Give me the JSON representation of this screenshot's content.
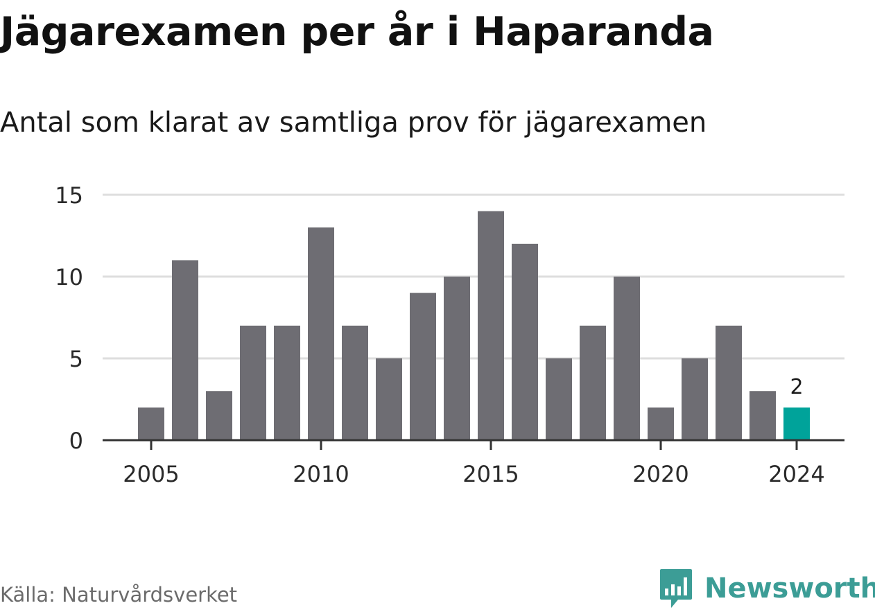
{
  "title": "Jägarexamen per år i Haparanda",
  "subtitle": "Antal som klarat av samtliga prov för jägarexamen",
  "source": "Källa: Naturvårdsverket",
  "brand": {
    "name": "Newsworthy",
    "icon": "newsworthy-logo-icon",
    "color": "#3c9d96"
  },
  "chart_data": {
    "type": "bar",
    "x": [
      2005,
      2006,
      2007,
      2008,
      2009,
      2010,
      2011,
      2012,
      2013,
      2014,
      2015,
      2016,
      2017,
      2018,
      2019,
      2020,
      2021,
      2022,
      2023,
      2024
    ],
    "values": [
      2,
      11,
      3,
      7,
      7,
      13,
      7,
      5,
      9,
      10,
      14,
      12,
      5,
      7,
      10,
      2,
      5,
      7,
      3,
      2
    ],
    "xticks": [
      "2005",
      "2010",
      "2015",
      "2020",
      "2024"
    ],
    "yticks": [
      "0",
      "5",
      "10",
      "15"
    ],
    "ylim": [
      0,
      15
    ],
    "grid": true,
    "highlight": {
      "x": 2024,
      "label": "2",
      "color": "#00a39a"
    },
    "bar_color": "#6e6d73",
    "xlabel": "",
    "ylabel": ""
  }
}
